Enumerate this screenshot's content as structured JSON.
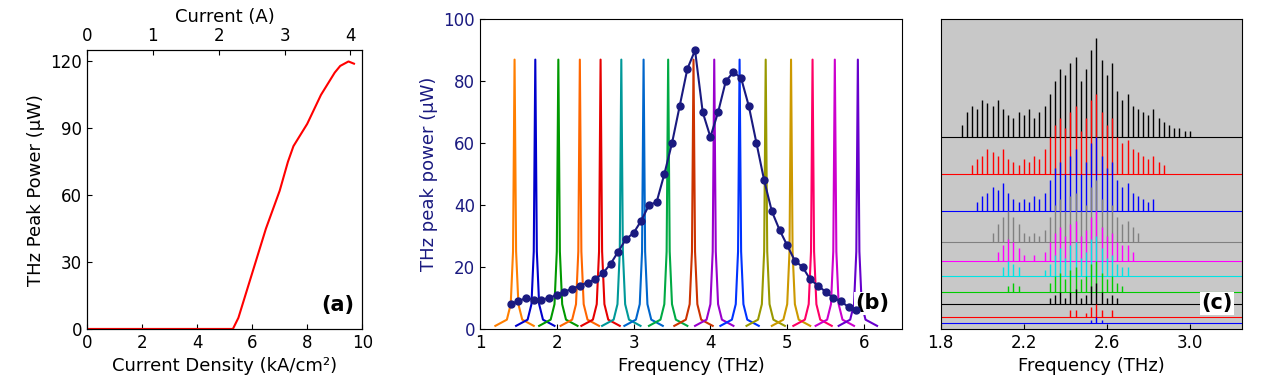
{
  "chart_data": [
    {
      "type": "line",
      "xlabel": "Current Density (kA/cm²)",
      "ylabel": "THz Peak Power (μW)",
      "x2label": "Current (A)",
      "annotations": [
        "(a)"
      ],
      "xlim": [
        0,
        10
      ],
      "xticks": [
        0,
        2,
        4,
        6,
        8,
        10
      ],
      "ylim": [
        0,
        125
      ],
      "yticks": [
        0,
        30,
        60,
        90,
        120
      ],
      "x2lim": [
        0,
        4.18
      ],
      "x2ticks": [
        0,
        1,
        2,
        3,
        4
      ],
      "series": [
        {
          "color": "#ff0000",
          "line_style": "solid",
          "x": [
            0,
            2,
            4,
            5.0,
            5.3,
            5.5,
            6.0,
            6.5,
            7.0,
            7.3,
            7.5,
            8.0,
            8.5,
            9.0,
            9.2,
            9.5,
            9.7
          ],
          "values": [
            0,
            0,
            0,
            0,
            0,
            5,
            25,
            45,
            62,
            75,
            82,
            92,
            105,
            115,
            118,
            120,
            119
          ]
        }
      ]
    },
    {
      "type": "line",
      "xlabel": "Frequency (THz)",
      "ylabel": "THz peak power (μW)",
      "annotations": [
        "(b)"
      ],
      "xlim": [
        1,
        6.5
      ],
      "xticks": [
        1,
        2,
        3,
        4,
        5,
        6
      ],
      "ylim": [
        0,
        100
      ],
      "yticks": [
        0,
        20,
        40,
        60,
        80,
        100
      ],
      "series": [
        {
          "color": "#ff7f00",
          "line_style": "solid",
          "x": [
            1.2,
            1.35,
            1.4,
            1.43,
            1.45,
            1.47,
            1.5,
            1.55,
            1.7
          ],
          "values": [
            1,
            3,
            8,
            25,
            87,
            25,
            8,
            3,
            1
          ]
        },
        {
          "color": "#0000cc",
          "line_style": "solid",
          "x": [
            1.47,
            1.62,
            1.67,
            1.7,
            1.72,
            1.74,
            1.77,
            1.82,
            1.97
          ],
          "values": [
            1,
            3,
            8,
            25,
            87,
            25,
            8,
            3,
            1
          ]
        },
        {
          "color": "#009900",
          "line_style": "solid",
          "x": [
            1.77,
            1.92,
            1.97,
            2.0,
            2.02,
            2.04,
            2.07,
            2.12,
            2.27
          ],
          "values": [
            1,
            3,
            8,
            25,
            87,
            25,
            8,
            3,
            1
          ]
        },
        {
          "color": "#ff6600",
          "line_style": "solid",
          "x": [
            2.05,
            2.2,
            2.25,
            2.28,
            2.3,
            2.32,
            2.35,
            2.4,
            2.55
          ],
          "values": [
            1,
            3,
            8,
            25,
            87,
            25,
            8,
            3,
            1
          ]
        },
        {
          "color": "#e60000",
          "line_style": "solid",
          "x": [
            2.32,
            2.47,
            2.52,
            2.55,
            2.57,
            2.59,
            2.62,
            2.67,
            2.82
          ],
          "values": [
            1,
            3,
            8,
            25,
            87,
            25,
            8,
            3,
            1
          ]
        },
        {
          "color": "#009999",
          "line_style": "solid",
          "x": [
            2.59,
            2.74,
            2.79,
            2.82,
            2.84,
            2.86,
            2.89,
            2.94,
            3.09
          ],
          "values": [
            1,
            3,
            8,
            25,
            87,
            25,
            8,
            3,
            1
          ]
        },
        {
          "color": "#0066cc",
          "line_style": "solid",
          "x": [
            2.88,
            3.03,
            3.08,
            3.11,
            3.13,
            3.15,
            3.18,
            3.23,
            3.38
          ],
          "values": [
            1,
            3,
            8,
            25,
            87,
            25,
            8,
            3,
            1
          ]
        },
        {
          "color": "#00aa44",
          "line_style": "solid",
          "x": [
            3.2,
            3.35,
            3.4,
            3.43,
            3.45,
            3.47,
            3.5,
            3.55,
            3.7
          ],
          "values": [
            1,
            3,
            8,
            25,
            87,
            25,
            8,
            3,
            1
          ]
        },
        {
          "color": "#cc3300",
          "line_style": "solid",
          "x": [
            3.53,
            3.68,
            3.73,
            3.76,
            3.78,
            3.8,
            3.83,
            3.88,
            4.03
          ],
          "values": [
            1,
            3,
            8,
            25,
            87,
            25,
            8,
            3,
            1
          ]
        },
        {
          "color": "#9900cc",
          "line_style": "solid",
          "x": [
            3.8,
            3.95,
            4.0,
            4.03,
            4.05,
            4.07,
            4.1,
            4.15,
            4.3
          ],
          "values": [
            1,
            3,
            8,
            25,
            87,
            25,
            8,
            3,
            1
          ]
        },
        {
          "color": "#0033ff",
          "line_style": "solid",
          "x": [
            4.13,
            4.28,
            4.33,
            4.36,
            4.38,
            4.4,
            4.43,
            4.48,
            4.63
          ],
          "values": [
            1,
            3,
            8,
            25,
            87,
            25,
            8,
            3,
            1
          ]
        },
        {
          "color": "#999900",
          "line_style": "solid",
          "x": [
            4.47,
            4.62,
            4.67,
            4.7,
            4.72,
            4.74,
            4.77,
            4.82,
            4.97
          ],
          "values": [
            1,
            3,
            8,
            25,
            87,
            25,
            8,
            3,
            1
          ]
        },
        {
          "color": "#cc9900",
          "line_style": "solid",
          "x": [
            4.8,
            4.95,
            5.0,
            5.03,
            5.05,
            5.07,
            5.1,
            5.15,
            5.3
          ],
          "values": [
            1,
            3,
            8,
            25,
            87,
            25,
            8,
            3,
            1
          ]
        },
        {
          "color": "#ff0066",
          "line_style": "solid",
          "x": [
            5.08,
            5.23,
            5.28,
            5.31,
            5.33,
            5.35,
            5.38,
            5.43,
            5.58
          ],
          "values": [
            1,
            3,
            8,
            25,
            87,
            25,
            8,
            3,
            1
          ]
        },
        {
          "color": "#cc00cc",
          "line_style": "solid",
          "x": [
            5.37,
            5.52,
            5.57,
            5.6,
            5.62,
            5.64,
            5.67,
            5.72,
            5.87
          ],
          "values": [
            1,
            3,
            8,
            25,
            87,
            25,
            8,
            3,
            1
          ]
        },
        {
          "color": "#6600cc",
          "line_style": "solid",
          "x": [
            5.67,
            5.82,
            5.87,
            5.9,
            5.92,
            5.94,
            5.97,
            6.02,
            6.17
          ],
          "values": [
            1,
            3,
            8,
            25,
            87,
            25,
            8,
            3,
            1
          ]
        },
        {
          "color": "#1a1a80",
          "line_style": "solid",
          "marker": "o",
          "x": [
            1.4,
            1.5,
            1.6,
            1.7,
            1.8,
            1.9,
            2.0,
            2.1,
            2.2,
            2.3,
            2.4,
            2.5,
            2.6,
            2.7,
            2.8,
            2.9,
            3.0,
            3.1,
            3.2,
            3.3,
            3.4,
            3.5,
            3.6,
            3.7,
            3.8,
            3.9,
            4.0,
            4.1,
            4.2,
            4.3,
            4.4,
            4.5,
            4.6,
            4.7,
            4.8,
            4.9,
            5.0,
            5.1,
            5.2,
            5.3,
            5.4,
            5.5,
            5.6,
            5.7,
            5.8,
            5.9
          ],
          "values": [
            8,
            9,
            10,
            9.5,
            9.5,
            10,
            11,
            12,
            13,
            14,
            15,
            16,
            18,
            21,
            25,
            29,
            31,
            35,
            40,
            41,
            50,
            60,
            72,
            84,
            90,
            70,
            62,
            70,
            80,
            83,
            81,
            72,
            60,
            48,
            38,
            32,
            27,
            22,
            20,
            16,
            14,
            12,
            10,
            9,
            7,
            6
          ]
        }
      ]
    },
    {
      "type": "stem",
      "xlabel": "Frequency (THz)",
      "annotations": [
        "(c)"
      ],
      "tick_labels": "x",
      "xlim": [
        1.8,
        3.25
      ],
      "xticks": [
        1.8,
        2.2,
        2.6,
        3.0
      ],
      "ylim": [
        0,
        100
      ],
      "x": [
        1.9,
        1.925,
        1.95,
        1.975,
        2.0,
        2.025,
        2.05,
        2.075,
        2.1,
        2.125,
        2.15,
        2.175,
        2.2,
        2.225,
        2.25,
        2.275,
        2.3,
        2.325,
        2.35,
        2.375,
        2.4,
        2.425,
        2.45,
        2.475,
        2.5,
        2.525,
        2.55,
        2.575,
        2.6,
        2.625,
        2.65,
        2.675,
        2.7,
        2.725,
        2.75,
        2.775,
        2.8,
        2.825,
        2.85,
        2.875,
        2.9,
        2.925,
        2.95,
        2.975,
        3.0
      ],
      "series": [
        {
          "color": "#000000",
          "offset": 62,
          "values": [
            4,
            8,
            10,
            9,
            12,
            11,
            10,
            12,
            9,
            7,
            6,
            8,
            7,
            9,
            6,
            8,
            10,
            14,
            18,
            22,
            20,
            24,
            26,
            18,
            22,
            28,
            32,
            25,
            20,
            24,
            15,
            12,
            14,
            10,
            9,
            8,
            7,
            9,
            6,
            5,
            4,
            3,
            3,
            2,
            2
          ]
        },
        {
          "color": "#ff0000",
          "offset": 50,
          "values": [
            0,
            0,
            3,
            5,
            6,
            8,
            7,
            6,
            8,
            5,
            4,
            3,
            5,
            4,
            6,
            5,
            8,
            12,
            16,
            18,
            15,
            20,
            22,
            14,
            18,
            24,
            26,
            20,
            16,
            18,
            12,
            10,
            11,
            8,
            7,
            6,
            5,
            6,
            4,
            3,
            0,
            0,
            0,
            0,
            0
          ]
        },
        {
          "color": "#0000ff",
          "offset": 38,
          "values": [
            0,
            0,
            0,
            3,
            5,
            6,
            8,
            7,
            9,
            6,
            4,
            3,
            4,
            3,
            5,
            4,
            6,
            10,
            14,
            16,
            12,
            18,
            20,
            12,
            16,
            22,
            24,
            18,
            14,
            16,
            10,
            8,
            9,
            6,
            5,
            4,
            3,
            4,
            0,
            0,
            0,
            0,
            0,
            0,
            0
          ]
        },
        {
          "color": "#808080",
          "offset": 28,
          "values": [
            0,
            0,
            0,
            0,
            0,
            0,
            3,
            6,
            8,
            10,
            8,
            6,
            3,
            2,
            3,
            2,
            4,
            8,
            12,
            14,
            10,
            15,
            16,
            10,
            12,
            18,
            20,
            14,
            10,
            12,
            8,
            6,
            7,
            5,
            3,
            0,
            0,
            0,
            0,
            0,
            0,
            0,
            0,
            0,
            0
          ]
        },
        {
          "color": "#ff00ff",
          "offset": 22,
          "values": [
            0,
            0,
            0,
            0,
            0,
            0,
            0,
            3,
            5,
            7,
            6,
            4,
            2,
            0,
            2,
            0,
            3,
            6,
            9,
            11,
            8,
            12,
            13,
            8,
            10,
            14,
            16,
            11,
            8,
            9,
            6,
            5,
            5,
            3,
            0,
            0,
            0,
            0,
            0,
            0,
            0,
            0,
            0,
            0,
            0
          ]
        },
        {
          "color": "#00e5e5",
          "offset": 17,
          "values": [
            0,
            0,
            0,
            0,
            0,
            0,
            0,
            0,
            3,
            5,
            4,
            3,
            0,
            0,
            0,
            0,
            2,
            4,
            7,
            9,
            6,
            10,
            11,
            6,
            8,
            12,
            13,
            9,
            6,
            7,
            4,
            3,
            3,
            0,
            0,
            0,
            0,
            0,
            0,
            0,
            0,
            0,
            0,
            0,
            0
          ]
        },
        {
          "color": "#00cc00",
          "offset": 12,
          "values": [
            0,
            0,
            0,
            0,
            0,
            0,
            0,
            0,
            0,
            2,
            3,
            2,
            0,
            0,
            0,
            0,
            0,
            3,
            5,
            6,
            4,
            7,
            8,
            4,
            5,
            9,
            10,
            6,
            4,
            5,
            3,
            2,
            0,
            0,
            0,
            0,
            0,
            0,
            0,
            0,
            0,
            0,
            0,
            0,
            0
          ]
        },
        {
          "color": "#000000",
          "offset": 8,
          "values": [
            0,
            0,
            0,
            0,
            0,
            0,
            0,
            0,
            0,
            0,
            0,
            0,
            0,
            0,
            0,
            0,
            0,
            2,
            3,
            4,
            2,
            4,
            5,
            2,
            3,
            6,
            7,
            4,
            2,
            3,
            2,
            0,
            0,
            0,
            0,
            0,
            0,
            0,
            0,
            0,
            0,
            0,
            0,
            0,
            0
          ]
        },
        {
          "color": "#ff0000",
          "offset": 4,
          "values": [
            0,
            0,
            0,
            0,
            0,
            0,
            0,
            0,
            0,
            0,
            0,
            0,
            0,
            0,
            0,
            0,
            0,
            0,
            0,
            0,
            0,
            2,
            2,
            0,
            1,
            3,
            4,
            2,
            0,
            2,
            0,
            0,
            0,
            0,
            0,
            0,
            0,
            0,
            0,
            0,
            0,
            0,
            0,
            0,
            0
          ]
        },
        {
          "color": "#0000ff",
          "offset": 2,
          "values": [
            0,
            0,
            0,
            0,
            0,
            0,
            0,
            0,
            0,
            0,
            0,
            0,
            0,
            0,
            0,
            0,
            0,
            0,
            0,
            0,
            0,
            0,
            0,
            0,
            0,
            1,
            2,
            1,
            0,
            0,
            0,
            0,
            0,
            0,
            0,
            0,
            0,
            0,
            0,
            0,
            0,
            0,
            0,
            0,
            0
          ]
        }
      ]
    }
  ]
}
